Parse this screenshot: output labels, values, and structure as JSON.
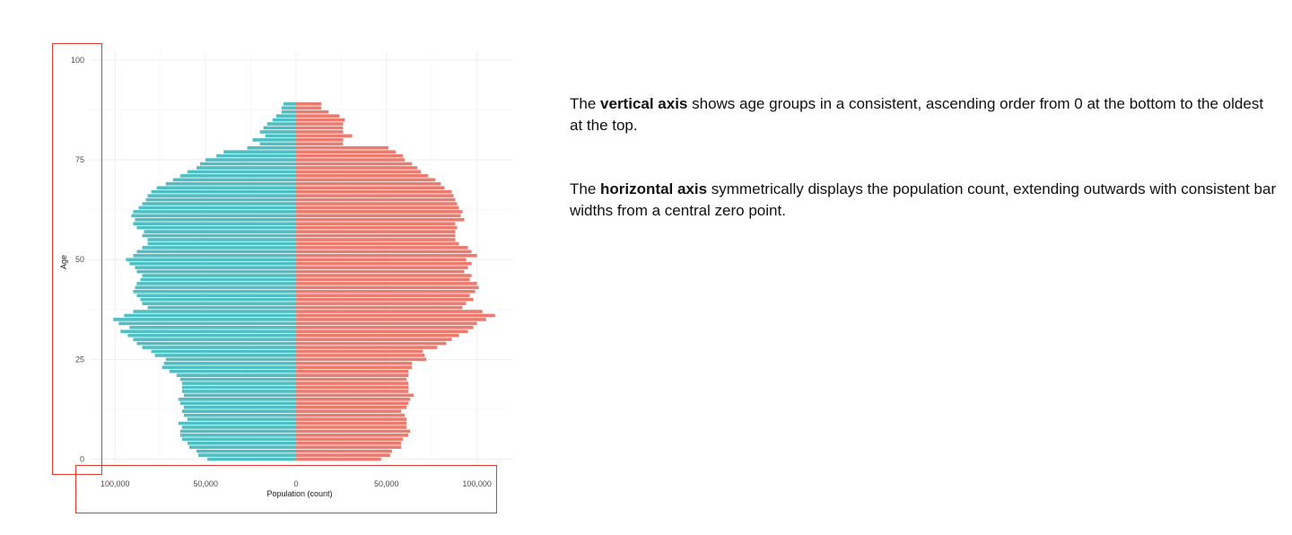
{
  "chart_data": {
    "type": "bar",
    "orientation": "horizontal",
    "layout": "population-pyramid",
    "xlabel": "Population (count)",
    "ylabel": "Age",
    "x_ticks": [
      -100000,
      -50000,
      0,
      50000,
      100000
    ],
    "x_tick_labels": [
      "100,000",
      "50,000",
      "0",
      "50,000",
      "100,000"
    ],
    "y_ticks": [
      0,
      25,
      50,
      75,
      100
    ],
    "y_tick_labels": [
      "0",
      "25",
      "50",
      "75",
      "100"
    ],
    "xlim": [
      -114000,
      120000
    ],
    "ylim": [
      -1,
      102
    ],
    "grid": true,
    "legend": "none",
    "ages": [
      0,
      1,
      2,
      3,
      4,
      5,
      6,
      7,
      8,
      9,
      10,
      11,
      12,
      13,
      14,
      15,
      16,
      17,
      18,
      19,
      20,
      21,
      22,
      23,
      24,
      25,
      26,
      27,
      28,
      29,
      30,
      31,
      32,
      33,
      34,
      35,
      36,
      37,
      38,
      39,
      40,
      41,
      42,
      43,
      44,
      45,
      46,
      47,
      48,
      49,
      50,
      51,
      52,
      53,
      54,
      55,
      56,
      57,
      58,
      59,
      60,
      61,
      62,
      63,
      64,
      65,
      66,
      67,
      68,
      69,
      70,
      71,
      72,
      73,
      74,
      75,
      76,
      77,
      78,
      79,
      80,
      81,
      82,
      83,
      84,
      85,
      86,
      87,
      88,
      89
    ],
    "series": [
      {
        "side": "left",
        "color": "#4fbfc4",
        "values": [
          49000,
          54000,
          55000,
          59000,
          60000,
          63000,
          64000,
          64000,
          63000,
          65000,
          60000,
          62000,
          63000,
          62000,
          64000,
          65000,
          62000,
          63000,
          63000,
          63000,
          64000,
          66000,
          70000,
          74000,
          73000,
          72000,
          78000,
          80000,
          85000,
          88000,
          90000,
          93000,
          97000,
          92000,
          98000,
          101000,
          95000,
          90000,
          82000,
          85000,
          86000,
          88000,
          90000,
          89000,
          88000,
          86000,
          85000,
          88000,
          89000,
          92000,
          94000,
          90000,
          88000,
          85000,
          82000,
          82000,
          85000,
          84000,
          88000,
          90000,
          89000,
          91000,
          90000,
          87000,
          85000,
          83000,
          82000,
          80000,
          77000,
          72000,
          68000,
          64000,
          60000,
          55000,
          53000,
          50000,
          44000,
          40000,
          27000,
          20000,
          24000,
          17000,
          20000,
          18000,
          16000,
          13000,
          11000,
          8000,
          8000,
          7000
        ]
      },
      {
        "side": "right",
        "color": "#ec7b6f",
        "values": [
          47000,
          52000,
          53000,
          58000,
          58000,
          59000,
          62000,
          63000,
          61000,
          61000,
          61000,
          60000,
          58000,
          61000,
          62000,
          63000,
          65000,
          62000,
          62000,
          62000,
          61000,
          62000,
          62000,
          64000,
          64000,
          72000,
          71000,
          70000,
          78000,
          83000,
          86000,
          90000,
          95000,
          98000,
          100000,
          105000,
          110000,
          103000,
          92000,
          94000,
          98000,
          96000,
          99000,
          101000,
          100000,
          96000,
          97000,
          93000,
          95000,
          97000,
          94000,
          100000,
          97000,
          95000,
          90000,
          88000,
          88000,
          88000,
          89000,
          88000,
          93000,
          91000,
          92000,
          90000,
          89000,
          88000,
          87000,
          86000,
          82000,
          80000,
          77000,
          73000,
          69000,
          67000,
          64000,
          60000,
          59000,
          55000,
          51000,
          26000,
          26000,
          31000,
          26000,
          26000,
          26000,
          27000,
          24000,
          18000,
          14000,
          14000
        ]
      }
    ]
  },
  "description": {
    "paragraphs": [
      {
        "bold": "vertical axis",
        "before": "The ",
        "after": " shows age groups in a consistent, ascending order from 0 at the bottom to the oldest at the top."
      },
      {
        "bold": "horizontal axis",
        "before": "The ",
        "after": " symmetrically displays the population count, extending outwards with consistent bar widths from a central zero point."
      }
    ]
  }
}
